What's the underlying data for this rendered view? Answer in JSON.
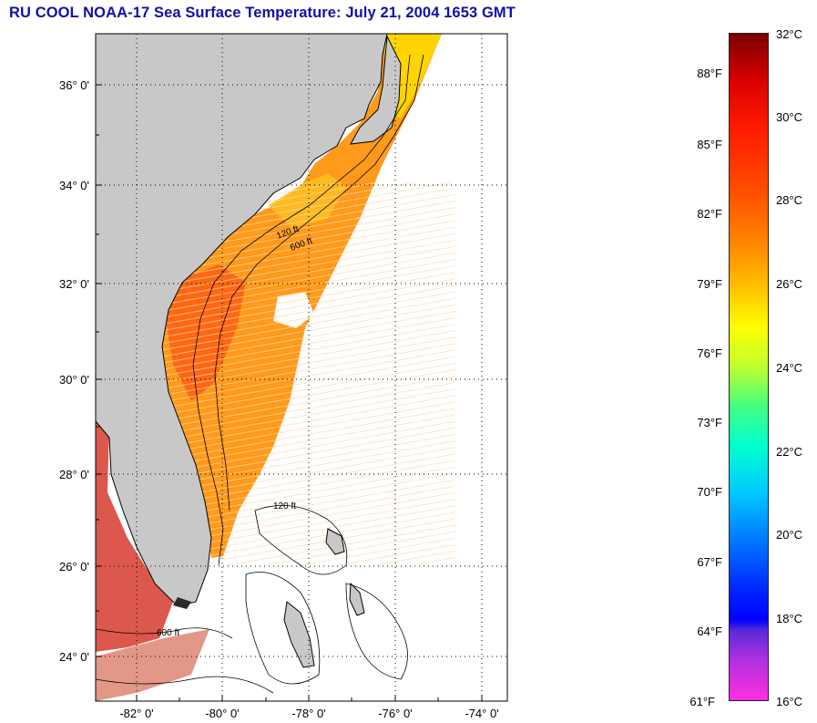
{
  "title": "RU COOL  NOAA-17  Sea Surface Temperature:  July 21, 2004 1653 GMT",
  "map": {
    "lat_labels": [
      "36° 0'",
      "34° 0'",
      "32° 0'",
      "30° 0'",
      "28° 0'",
      "26° 0'",
      "24° 0'"
    ],
    "lon_labels": [
      "-82° 0'",
      "-80° 0'",
      "-78° 0'",
      "-76° 0'",
      "-74° 0'"
    ],
    "contour_labels": [
      "120 ft",
      "600 ft"
    ],
    "land_color": "#c8c8c8",
    "ocean_color": "#ffffff"
  },
  "colorbar": {
    "celsius_labels": [
      "32°C",
      "30°C",
      "28°C",
      "26°C",
      "24°C",
      "22°C",
      "20°C",
      "18°C",
      "16°C"
    ],
    "fahrenheit_labels": [
      "88°F",
      "85°F",
      "82°F",
      "79°F",
      "76°F",
      "73°F",
      "70°F",
      "67°F",
      "64°F",
      "61°F"
    ],
    "range_c": [
      16,
      32
    ]
  }
}
